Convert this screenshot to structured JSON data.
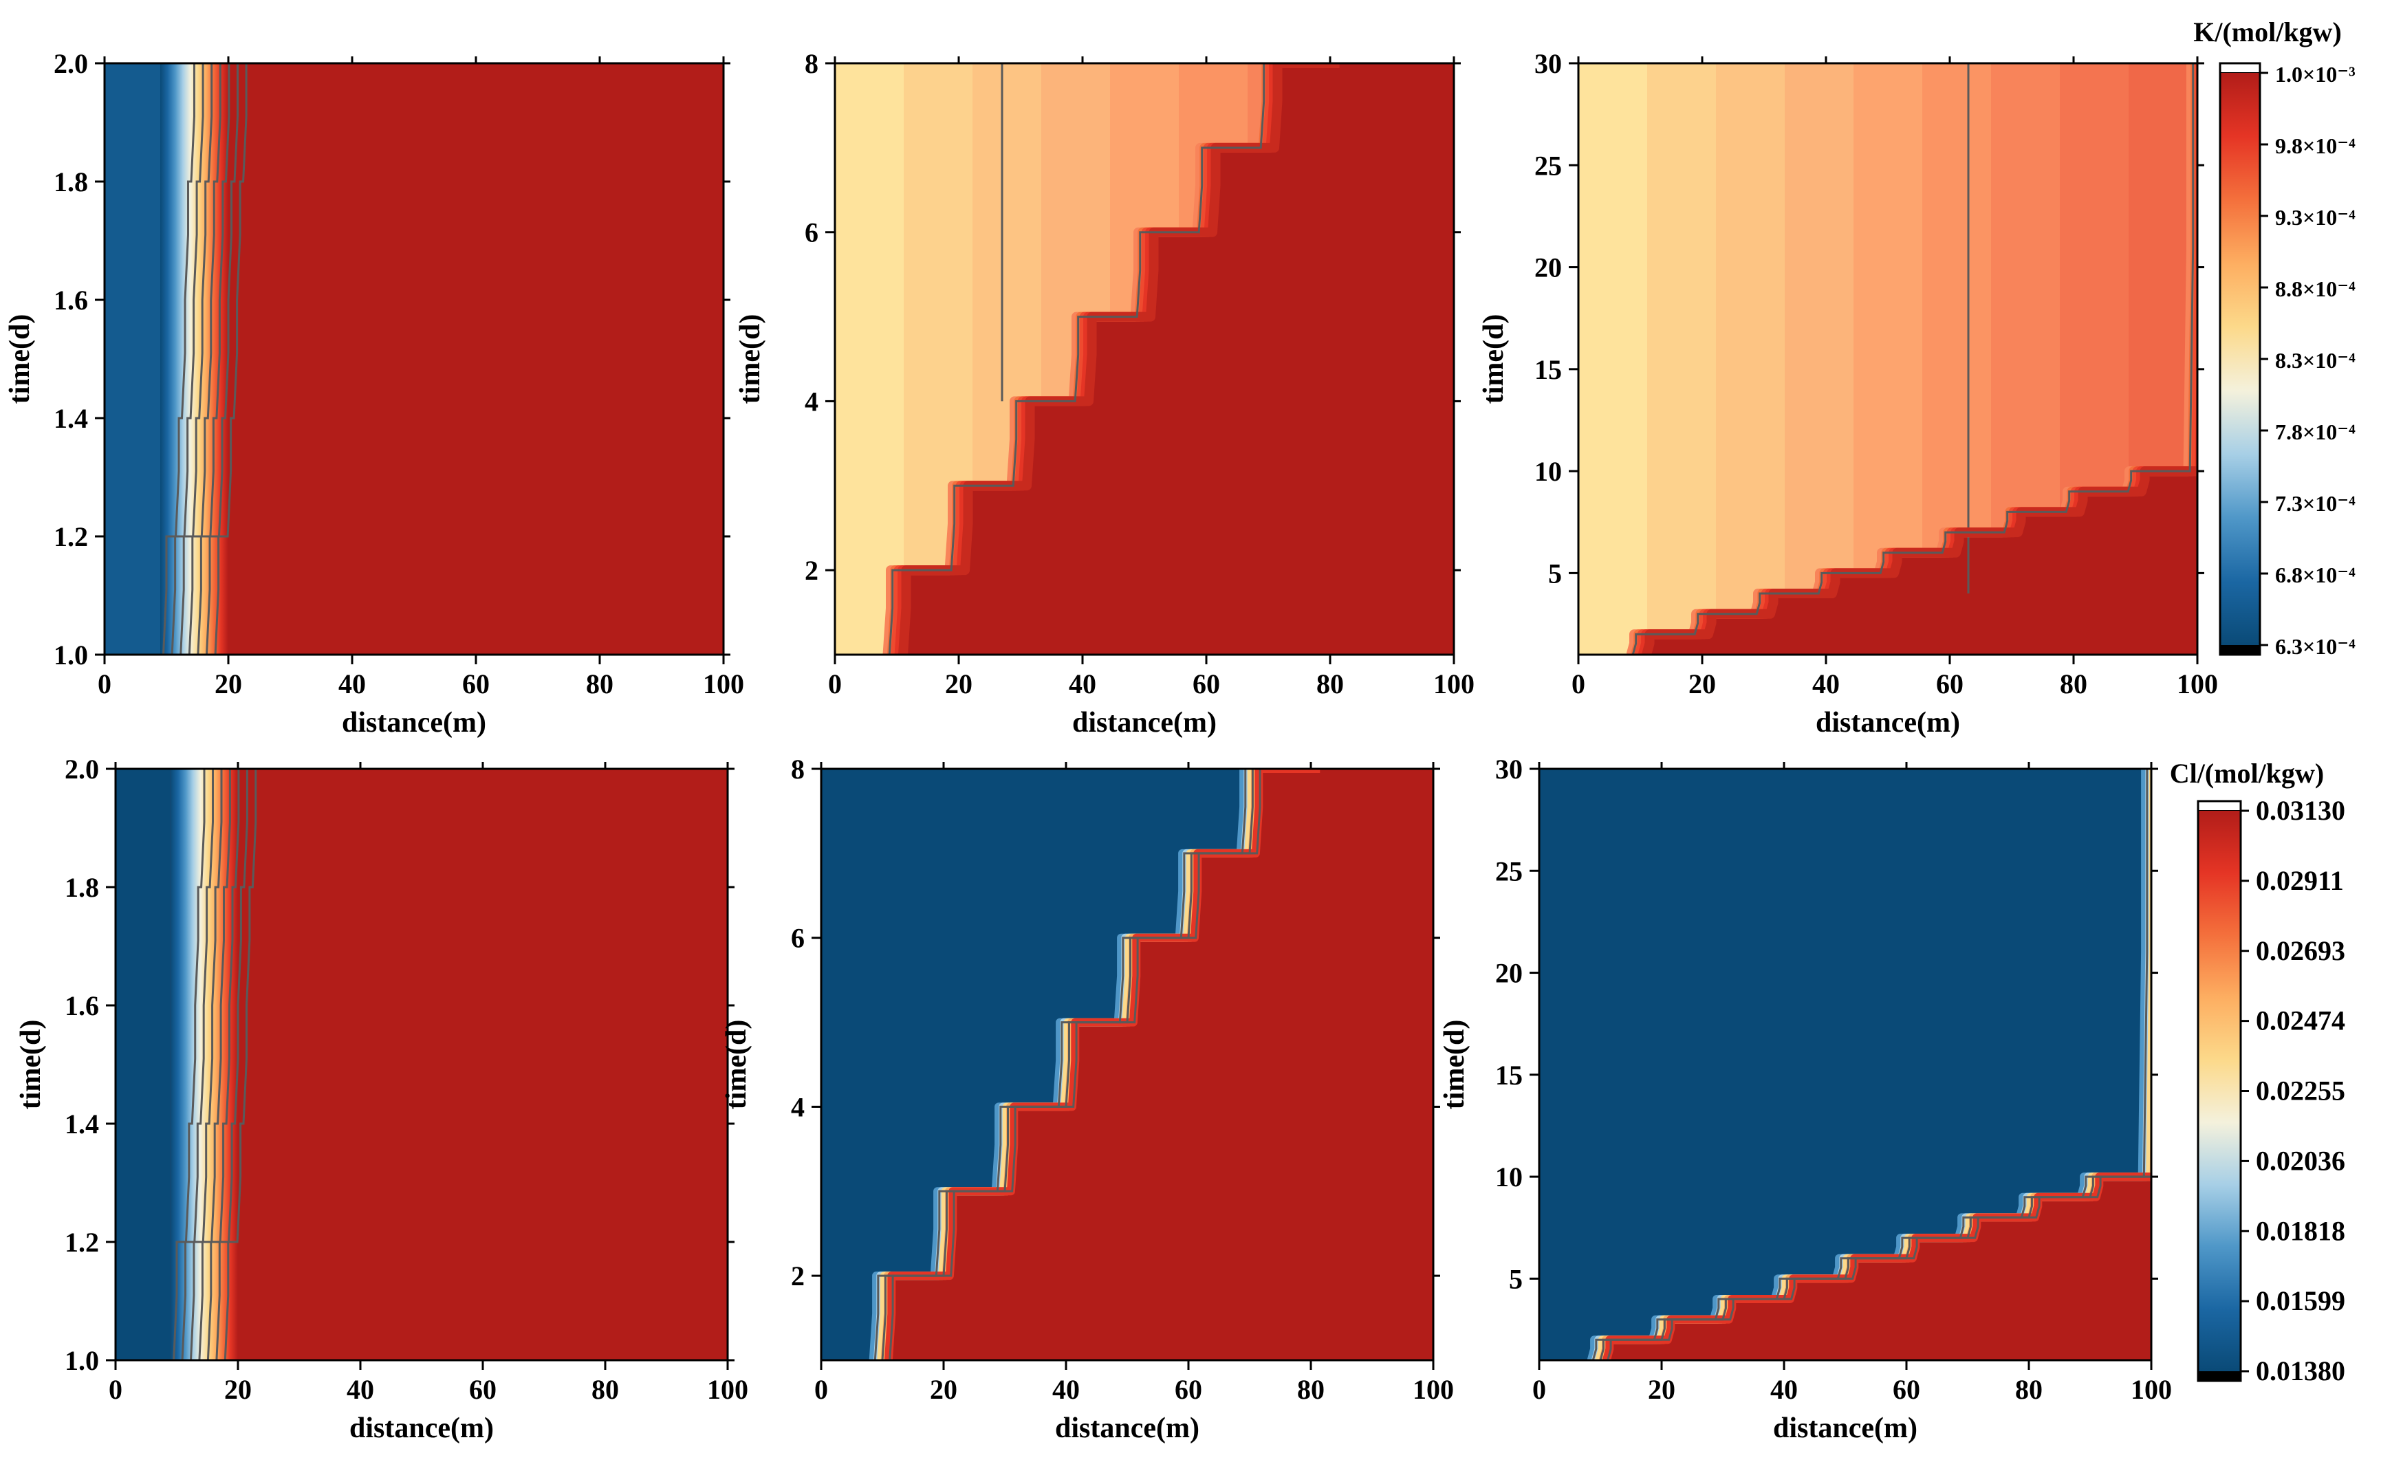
{
  "chart_data": [
    {
      "type": "heatmap",
      "id": "k-short",
      "title": "",
      "xlabel": "distance(m)",
      "ylabel": "time(d)",
      "xlim": [
        0,
        100
      ],
      "ylim": [
        1.0,
        2.0
      ],
      "x_ticks": [
        "0",
        "20",
        "40",
        "60",
        "80",
        "100"
      ],
      "y_ticks": [
        "1.0",
        "1.2",
        "1.4",
        "1.6",
        "1.8",
        "2.0"
      ],
      "y_tick_values": [
        1.0,
        1.2,
        1.4,
        1.6,
        1.8,
        2.0
      ],
      "front": [
        [
          1.0,
          10
        ],
        [
          1.2,
          12
        ],
        [
          1.4,
          13
        ],
        [
          1.6,
          13.5
        ],
        [
          1.8,
          14.5
        ],
        [
          2.0,
          16
        ]
      ],
      "low_region_edge_m": 9,
      "plateau_edge_m": 20,
      "colorbar": "K"
    },
    {
      "type": "heatmap",
      "id": "k-medium",
      "xlabel": "distance(m)",
      "ylabel": "time(d)",
      "xlim": [
        0,
        100
      ],
      "ylim": [
        1,
        8
      ],
      "x_ticks": [
        "0",
        "20",
        "40",
        "60",
        "80",
        "100"
      ],
      "y_ticks": [
        "2",
        "4",
        "6",
        "8"
      ],
      "y_tick_values": [
        2,
        4,
        6,
        8
      ],
      "front": [
        [
          1,
          10
        ],
        [
          2,
          20
        ],
        [
          3,
          30
        ],
        [
          4,
          40
        ],
        [
          5,
          50
        ],
        [
          6,
          60
        ],
        [
          7,
          70
        ],
        [
          8,
          80
        ]
      ],
      "plateau_contour_m": 27,
      "colorbar": "K"
    },
    {
      "type": "heatmap",
      "id": "k-long",
      "xlabel": "distance(m)",
      "ylabel": "time(d)",
      "xlim": [
        0,
        100
      ],
      "ylim": [
        1,
        30
      ],
      "x_ticks": [
        "0",
        "20",
        "40",
        "60",
        "80",
        "100"
      ],
      "y_ticks": [
        "5",
        "10",
        "15",
        "20",
        "25",
        "30"
      ],
      "y_tick_values": [
        5,
        10,
        15,
        20,
        25,
        30
      ],
      "front": [
        [
          1,
          10
        ],
        [
          2,
          20
        ],
        [
          3,
          30
        ],
        [
          4,
          40
        ],
        [
          5,
          50
        ],
        [
          6,
          60
        ],
        [
          7,
          70
        ],
        [
          8,
          80
        ],
        [
          9,
          90
        ],
        [
          10,
          100
        ]
      ],
      "plateau_contour_m": 63,
      "colorbar": "K"
    },
    {
      "type": "heatmap",
      "id": "cl-short",
      "xlabel": "distance(m)",
      "ylabel": "time(d)",
      "xlim": [
        0,
        100
      ],
      "ylim": [
        1.0,
        2.0
      ],
      "x_ticks": [
        "0",
        "20",
        "40",
        "60",
        "80",
        "100"
      ],
      "y_ticks": [
        "1.0",
        "1.2",
        "1.4",
        "1.6",
        "1.8",
        "2.0"
      ],
      "y_tick_values": [
        1.0,
        1.2,
        1.4,
        1.6,
        1.8,
        2.0
      ],
      "front": [
        [
          1.0,
          10
        ],
        [
          1.2,
          12
        ],
        [
          1.4,
          13
        ],
        [
          1.6,
          13.5
        ],
        [
          1.8,
          14.5
        ],
        [
          2.0,
          16
        ]
      ],
      "low_region_edge_m": 9,
      "plateau_edge_m": 20,
      "colorbar": "Cl"
    },
    {
      "type": "heatmap",
      "id": "cl-medium",
      "xlabel": "distance(m)",
      "ylabel": "time(d)",
      "xlim": [
        0,
        100
      ],
      "ylim": [
        1,
        8
      ],
      "x_ticks": [
        "0",
        "20",
        "40",
        "60",
        "80",
        "100"
      ],
      "y_ticks": [
        "2",
        "4",
        "6",
        "8"
      ],
      "y_tick_values": [
        2,
        4,
        6,
        8
      ],
      "front": [
        [
          1,
          10
        ],
        [
          2,
          20
        ],
        [
          3,
          30
        ],
        [
          4,
          40
        ],
        [
          5,
          50
        ],
        [
          6,
          60
        ],
        [
          7,
          70
        ],
        [
          8,
          80
        ]
      ],
      "colorbar": "Cl"
    },
    {
      "type": "heatmap",
      "id": "cl-long",
      "xlabel": "distance(m)",
      "ylabel": "time(d)",
      "xlim": [
        0,
        100
      ],
      "ylim": [
        1,
        30
      ],
      "x_ticks": [
        "0",
        "20",
        "40",
        "60",
        "80",
        "100"
      ],
      "y_ticks": [
        "5",
        "10",
        "15",
        "20",
        "25",
        "30"
      ],
      "y_tick_values": [
        5,
        10,
        15,
        20,
        25,
        30
      ],
      "front": [
        [
          1,
          10
        ],
        [
          2,
          20
        ],
        [
          3,
          30
        ],
        [
          4,
          40
        ],
        [
          5,
          50
        ],
        [
          6,
          60
        ],
        [
          7,
          70
        ],
        [
          8,
          80
        ],
        [
          9,
          90
        ],
        [
          10,
          100
        ]
      ],
      "colorbar": "Cl"
    }
  ],
  "colorbars": {
    "K": {
      "title": "K/(mol/kgw)",
      "labels": [
        "1.0×10⁻³",
        "9.8×10⁻⁴",
        "9.3×10⁻⁴",
        "8.8×10⁻⁴",
        "8.3×10⁻⁴",
        "7.8×10⁻⁴",
        "7.3×10⁻⁴",
        "6.8×10⁻⁴",
        "6.3×10⁻⁴"
      ],
      "min": 0.00063,
      "max": 0.001
    },
    "Cl": {
      "title": "Cl/(mol/kgw)",
      "labels": [
        "0.03130",
        "0.02911",
        "0.02693",
        "0.02474",
        "0.02255",
        "0.02036",
        "0.01818",
        "0.01599",
        "0.01380"
      ],
      "min": 0.0138,
      "max": 0.0313
    }
  },
  "colors": {
    "ramp": [
      "#0a4a77",
      "#1b67a3",
      "#4f97c8",
      "#a7cfe6",
      "#f4f1dc",
      "#fcd98a",
      "#fdae61",
      "#f4703c",
      "#e53525",
      "#b21d19"
    ],
    "k_stepped_bands": [
      "#fee39c",
      "#fdd28d",
      "#fdc483",
      "#fcb47a",
      "#fda46e",
      "#fb9463",
      "#f8845a",
      "#f47450",
      "#f06848"
    ],
    "over": "#ffffff",
    "under": "#000000",
    "contour": "#5a5a5a",
    "plateau": "#b21d19"
  }
}
